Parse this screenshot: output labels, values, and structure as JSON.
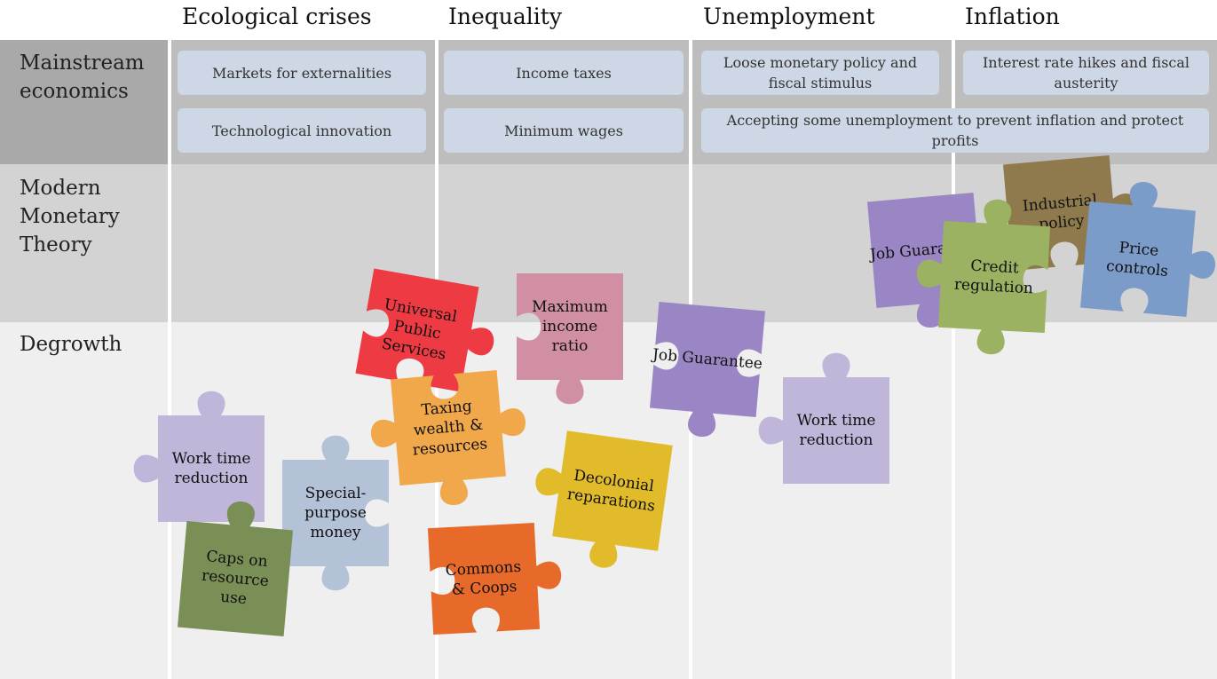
{
  "columns": [
    "Ecological crises",
    "Inequality",
    "Unemployment",
    "Inflation"
  ],
  "rows": [
    "Mainstream economics",
    "Modern Monetary Theory",
    "Degrowth"
  ],
  "mainstream_cells": [
    "Markets for externalities",
    "Technological innovation",
    "Income taxes",
    "Minimum wages",
    "Loose monetary policy and fiscal stimulus",
    "Interest rate hikes and fiscal austerity",
    "Accepting some unemployment to prevent inflation and protect profits"
  ],
  "pieces": [
    "Job Guarantee",
    "Industrial policy",
    "Price controls",
    "Credit regulation",
    "Universal Public Services",
    "Maximum income ratio",
    "Job Guarantee",
    "Work time reduction",
    "Taxing wealth & resources",
    "Decolonial reparations",
    "Work time reduction",
    "Special-purpose money",
    "Caps on resource use",
    "Commons & Coops"
  ]
}
